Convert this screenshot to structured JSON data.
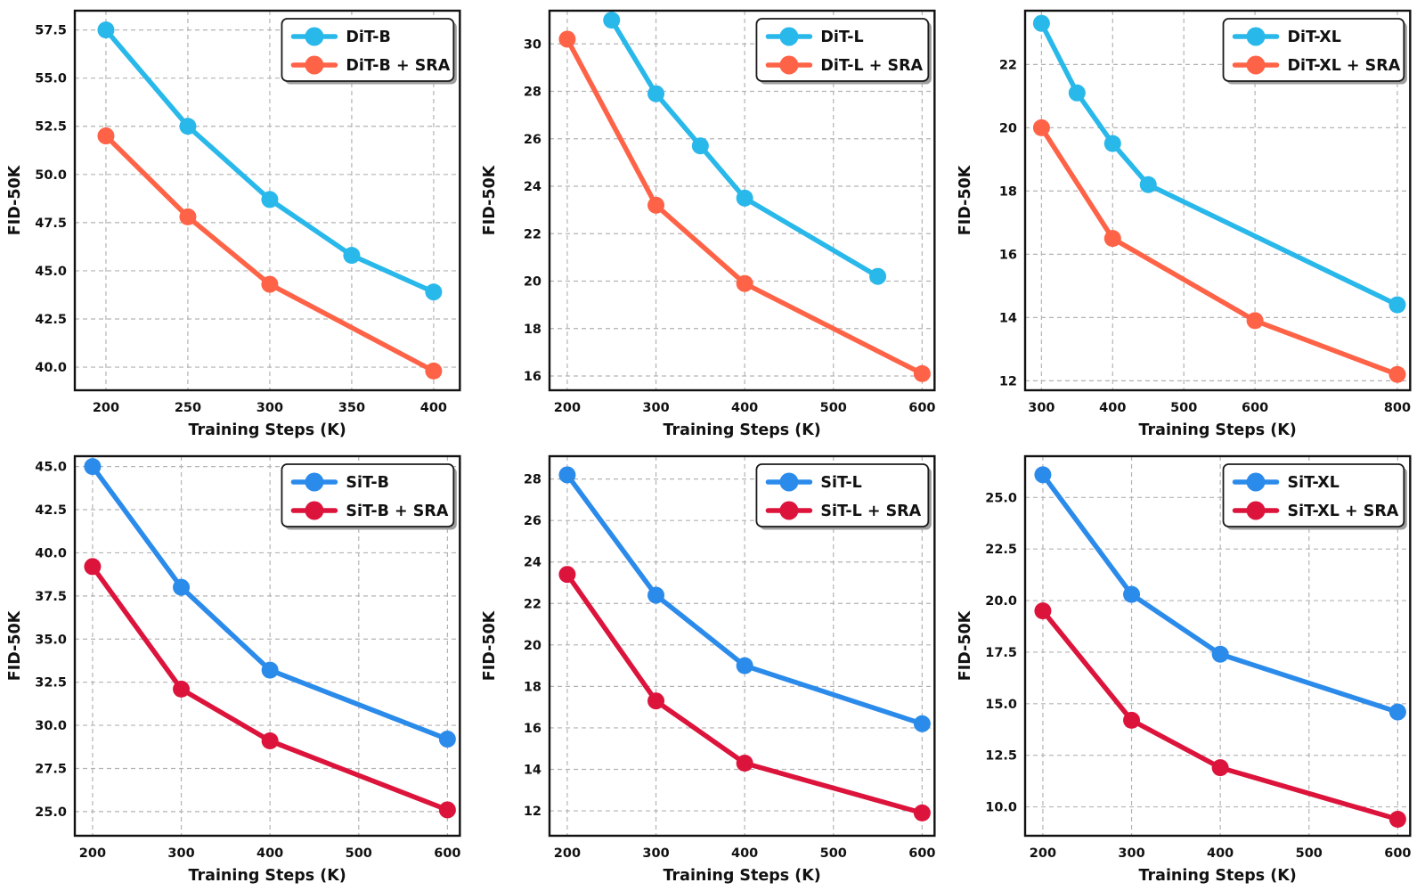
{
  "figure": {
    "background": "#ffffff",
    "text_color": "#111111",
    "grid_color": "#b3b3b3",
    "spine_color": "#111111",
    "legend_shadow_color": "#9e9e9e",
    "xlabel": "Training Steps (K)",
    "ylabel": "FID-50K"
  },
  "chart_data": [
    {
      "type": "line",
      "title": "",
      "xlabel": "Training Steps (K)",
      "ylabel": "FID-50K",
      "grid": true,
      "legend_position": "top-right",
      "xlim": [
        181,
        416
      ],
      "ylim": [
        38.8,
        58.5
      ],
      "xticks": [
        200,
        250,
        300,
        350,
        400
      ],
      "xtick_labels": [
        "200",
        "250",
        "300",
        "350",
        "400"
      ],
      "yticks": [
        40.0,
        42.5,
        45.0,
        47.5,
        50.0,
        52.5,
        55.0,
        57.5
      ],
      "ytick_labels": [
        "40.0",
        "42.5",
        "45.0",
        "47.5",
        "50.0",
        "52.5",
        "55.0",
        "57.5"
      ],
      "series": [
        {
          "name": "DiT-B",
          "color": "#29B8EA",
          "x": [
            200,
            250,
            300,
            350,
            400
          ],
          "y": [
            57.5,
            52.5,
            48.7,
            45.8,
            43.9
          ]
        },
        {
          "name": "DiT-B + SRA",
          "color": "#FF6347",
          "x": [
            200,
            250,
            300,
            400
          ],
          "y": [
            52.0,
            47.8,
            44.3,
            39.8
          ]
        }
      ]
    },
    {
      "type": "line",
      "title": "",
      "xlabel": "Training Steps (K)",
      "ylabel": "FID-50K",
      "grid": true,
      "legend_position": "top-right",
      "xlim": [
        180,
        614
      ],
      "ylim": [
        15.4,
        31.4
      ],
      "xticks": [
        200,
        300,
        400,
        500,
        600
      ],
      "xtick_labels": [
        "200",
        "300",
        "400",
        "500",
        "600"
      ],
      "yticks": [
        16,
        18,
        20,
        22,
        24,
        26,
        28,
        30
      ],
      "ytick_labels": [
        "16",
        "18",
        "20",
        "22",
        "24",
        "26",
        "28",
        "30"
      ],
      "series": [
        {
          "name": "DiT-L",
          "color": "#29B8EA",
          "x": [
            250,
            300,
            350,
            400,
            550
          ],
          "y": [
            31.0,
            27.9,
            25.7,
            23.5,
            20.2
          ]
        },
        {
          "name": "DiT-L + SRA",
          "color": "#FF6347",
          "x": [
            200,
            300,
            400,
            600
          ],
          "y": [
            30.2,
            23.2,
            19.9,
            16.1
          ]
        }
      ]
    },
    {
      "type": "line",
      "title": "",
      "xlabel": "Training Steps (K)",
      "ylabel": "FID-50K",
      "grid": true,
      "legend_position": "top-right",
      "xlim": [
        277,
        818
      ],
      "ylim": [
        11.7,
        23.7
      ],
      "xticks": [
        300,
        400,
        500,
        600,
        800
      ],
      "xtick_labels": [
        "300",
        "400",
        "500",
        "600",
        "800"
      ],
      "yticks": [
        12,
        14,
        16,
        18,
        20,
        22
      ],
      "ytick_labels": [
        "12",
        "14",
        "16",
        "18",
        "20",
        "22"
      ],
      "series": [
        {
          "name": "DiT-XL",
          "color": "#29B8EA",
          "x": [
            300,
            350,
            400,
            450,
            800
          ],
          "y": [
            23.3,
            21.1,
            19.5,
            18.2,
            14.4
          ]
        },
        {
          "name": "DiT-XL + SRA",
          "color": "#FF6347",
          "x": [
            300,
            400,
            600,
            800
          ],
          "y": [
            20.0,
            16.5,
            13.9,
            12.2
          ]
        }
      ]
    },
    {
      "type": "line",
      "title": "",
      "xlabel": "Training Steps (K)",
      "ylabel": "FID-50K",
      "grid": true,
      "legend_position": "top-right",
      "xlim": [
        180,
        614
      ],
      "ylim": [
        23.6,
        45.6
      ],
      "xticks": [
        200,
        300,
        400,
        500,
        600
      ],
      "xtick_labels": [
        "200",
        "300",
        "400",
        "500",
        "600"
      ],
      "yticks": [
        25.0,
        27.5,
        30.0,
        32.5,
        35.0,
        37.5,
        40.0,
        42.5,
        45.0
      ],
      "ytick_labels": [
        "25.0",
        "27.5",
        "30.0",
        "32.5",
        "35.0",
        "37.5",
        "40.0",
        "42.5",
        "45.0"
      ],
      "series": [
        {
          "name": "SiT-B",
          "color": "#2B8BEB",
          "x": [
            200,
            300,
            400,
            600
          ],
          "y": [
            45.0,
            38.0,
            33.2,
            29.2
          ]
        },
        {
          "name": "SiT-B + SRA",
          "color": "#DC143C",
          "x": [
            200,
            300,
            400,
            600
          ],
          "y": [
            39.2,
            32.1,
            29.1,
            25.1
          ]
        }
      ]
    },
    {
      "type": "line",
      "title": "",
      "xlabel": "Training Steps (K)",
      "ylabel": "FID-50K",
      "grid": true,
      "legend_position": "top-right",
      "xlim": [
        180,
        614
      ],
      "ylim": [
        10.8,
        29.1
      ],
      "xticks": [
        200,
        300,
        400,
        500,
        600
      ],
      "xtick_labels": [
        "200",
        "300",
        "400",
        "500",
        "600"
      ],
      "yticks": [
        12,
        14,
        16,
        18,
        20,
        22,
        24,
        26,
        28
      ],
      "ytick_labels": [
        "12",
        "14",
        "16",
        "18",
        "20",
        "22",
        "24",
        "26",
        "28"
      ],
      "series": [
        {
          "name": "SiT-L",
          "color": "#2B8BEB",
          "x": [
            200,
            300,
            400,
            600
          ],
          "y": [
            28.2,
            22.4,
            19.0,
            16.2
          ]
        },
        {
          "name": "SiT-L + SRA",
          "color": "#DC143C",
          "x": [
            200,
            300,
            400,
            600
          ],
          "y": [
            23.4,
            17.3,
            14.3,
            11.9
          ]
        }
      ]
    },
    {
      "type": "line",
      "title": "",
      "xlabel": "Training Steps (K)",
      "ylabel": "FID-50K",
      "grid": true,
      "legend_position": "top-right",
      "xlim": [
        180,
        614
      ],
      "ylim": [
        8.6,
        27.0
      ],
      "xticks": [
        200,
        300,
        400,
        500,
        600
      ],
      "xtick_labels": [
        "200",
        "300",
        "400",
        "500",
        "600"
      ],
      "yticks": [
        10.0,
        12.5,
        15.0,
        17.5,
        20.0,
        22.5,
        25.0
      ],
      "ytick_labels": [
        "10.0",
        "12.5",
        "15.0",
        "17.5",
        "20.0",
        "22.5",
        "25.0"
      ],
      "series": [
        {
          "name": "SiT-XL",
          "color": "#2B8BEB",
          "x": [
            200,
            300,
            400,
            600
          ],
          "y": [
            26.1,
            20.3,
            17.4,
            14.6
          ]
        },
        {
          "name": "SiT-XL + SRA",
          "color": "#DC143C",
          "x": [
            200,
            300,
            400,
            600
          ],
          "y": [
            19.5,
            14.2,
            11.9,
            9.4
          ]
        }
      ]
    }
  ]
}
